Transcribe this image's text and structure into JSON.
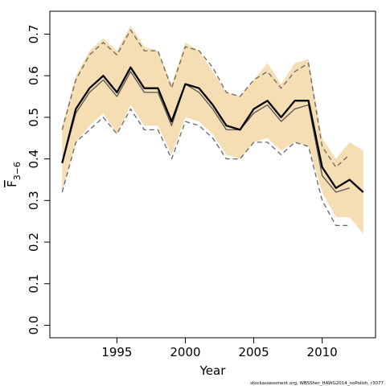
{
  "chart_data": {
    "type": "line",
    "title": "",
    "xlabel": "Year",
    "ylabel": "F̄3−6",
    "ylabel_main": "F",
    "ylabel_sub": "3−6",
    "xlim": [
      1990,
      2014
    ],
    "ylim": [
      0,
      0.75
    ],
    "x_ticks": [
      1995,
      2000,
      2005,
      2010
    ],
    "y_ticks": [
      0.0,
      0.1,
      0.2,
      0.3,
      0.4,
      0.5,
      0.6,
      0.7
    ],
    "x_tick_labels": [
      "1995",
      "2000",
      "2005",
      "2010"
    ],
    "y_tick_labels": [
      "0.0",
      "0.1",
      "0.2",
      "0.3",
      "0.4",
      "0.5",
      "0.6",
      "0.7"
    ],
    "grid": false,
    "band_color": "#f5deb3",
    "years": [
      1991,
      1992,
      1993,
      1994,
      1995,
      1996,
      1997,
      1998,
      1999,
      2000,
      2001,
      2002,
      2003,
      2004,
      2005,
      2006,
      2007,
      2008,
      2009,
      2010,
      2011,
      2012,
      2013
    ],
    "series": [
      {
        "role": "band",
        "lower": [
          0.32,
          0.44,
          0.48,
          0.51,
          0.46,
          0.53,
          0.48,
          0.48,
          0.41,
          0.5,
          0.49,
          0.46,
          0.41,
          0.4,
          0.44,
          0.45,
          0.42,
          0.44,
          0.43,
          0.32,
          0.26,
          0.26,
          0.22
        ],
        "upper": [
          0.48,
          0.6,
          0.66,
          0.69,
          0.66,
          0.72,
          0.67,
          0.66,
          0.58,
          0.68,
          0.66,
          0.61,
          0.56,
          0.55,
          0.59,
          0.63,
          0.58,
          0.63,
          0.64,
          0.45,
          0.4,
          0.44,
          0.42
        ]
      },
      {
        "role": "previous_assessment",
        "color": "#555555",
        "values": [
          0.39,
          0.51,
          0.56,
          0.59,
          0.55,
          0.61,
          0.56,
          0.56,
          0.48,
          0.58,
          0.56,
          0.52,
          0.47,
          0.47,
          0.51,
          0.53,
          0.49,
          0.52,
          0.53,
          0.36,
          0.32,
          0.33,
          null
        ]
      },
      {
        "role": "previous_lower",
        "color": "#666666",
        "values": [
          0.32,
          0.44,
          0.47,
          0.5,
          0.46,
          0.52,
          0.47,
          0.47,
          0.4,
          0.49,
          0.48,
          0.45,
          0.4,
          0.4,
          0.44,
          0.44,
          0.41,
          0.44,
          0.43,
          0.3,
          0.24,
          0.24,
          null
        ]
      },
      {
        "role": "previous_upper",
        "color": "#666666",
        "values": [
          0.47,
          0.59,
          0.65,
          0.68,
          0.65,
          0.71,
          0.66,
          0.66,
          0.57,
          0.67,
          0.66,
          0.62,
          0.56,
          0.55,
          0.59,
          0.61,
          0.57,
          0.61,
          0.63,
          0.43,
          0.38,
          0.41,
          null
        ]
      },
      {
        "role": "current_assessment",
        "color": "#000000",
        "values": [
          0.39,
          0.52,
          0.57,
          0.6,
          0.56,
          0.62,
          0.57,
          0.57,
          0.49,
          0.58,
          0.57,
          0.53,
          0.48,
          0.47,
          0.52,
          0.54,
          0.5,
          0.54,
          0.54,
          0.38,
          0.33,
          0.35,
          0.32
        ]
      }
    ]
  },
  "footer": "stockassessment.org, WBSSher_HAWG2014_noPolish, r3077"
}
